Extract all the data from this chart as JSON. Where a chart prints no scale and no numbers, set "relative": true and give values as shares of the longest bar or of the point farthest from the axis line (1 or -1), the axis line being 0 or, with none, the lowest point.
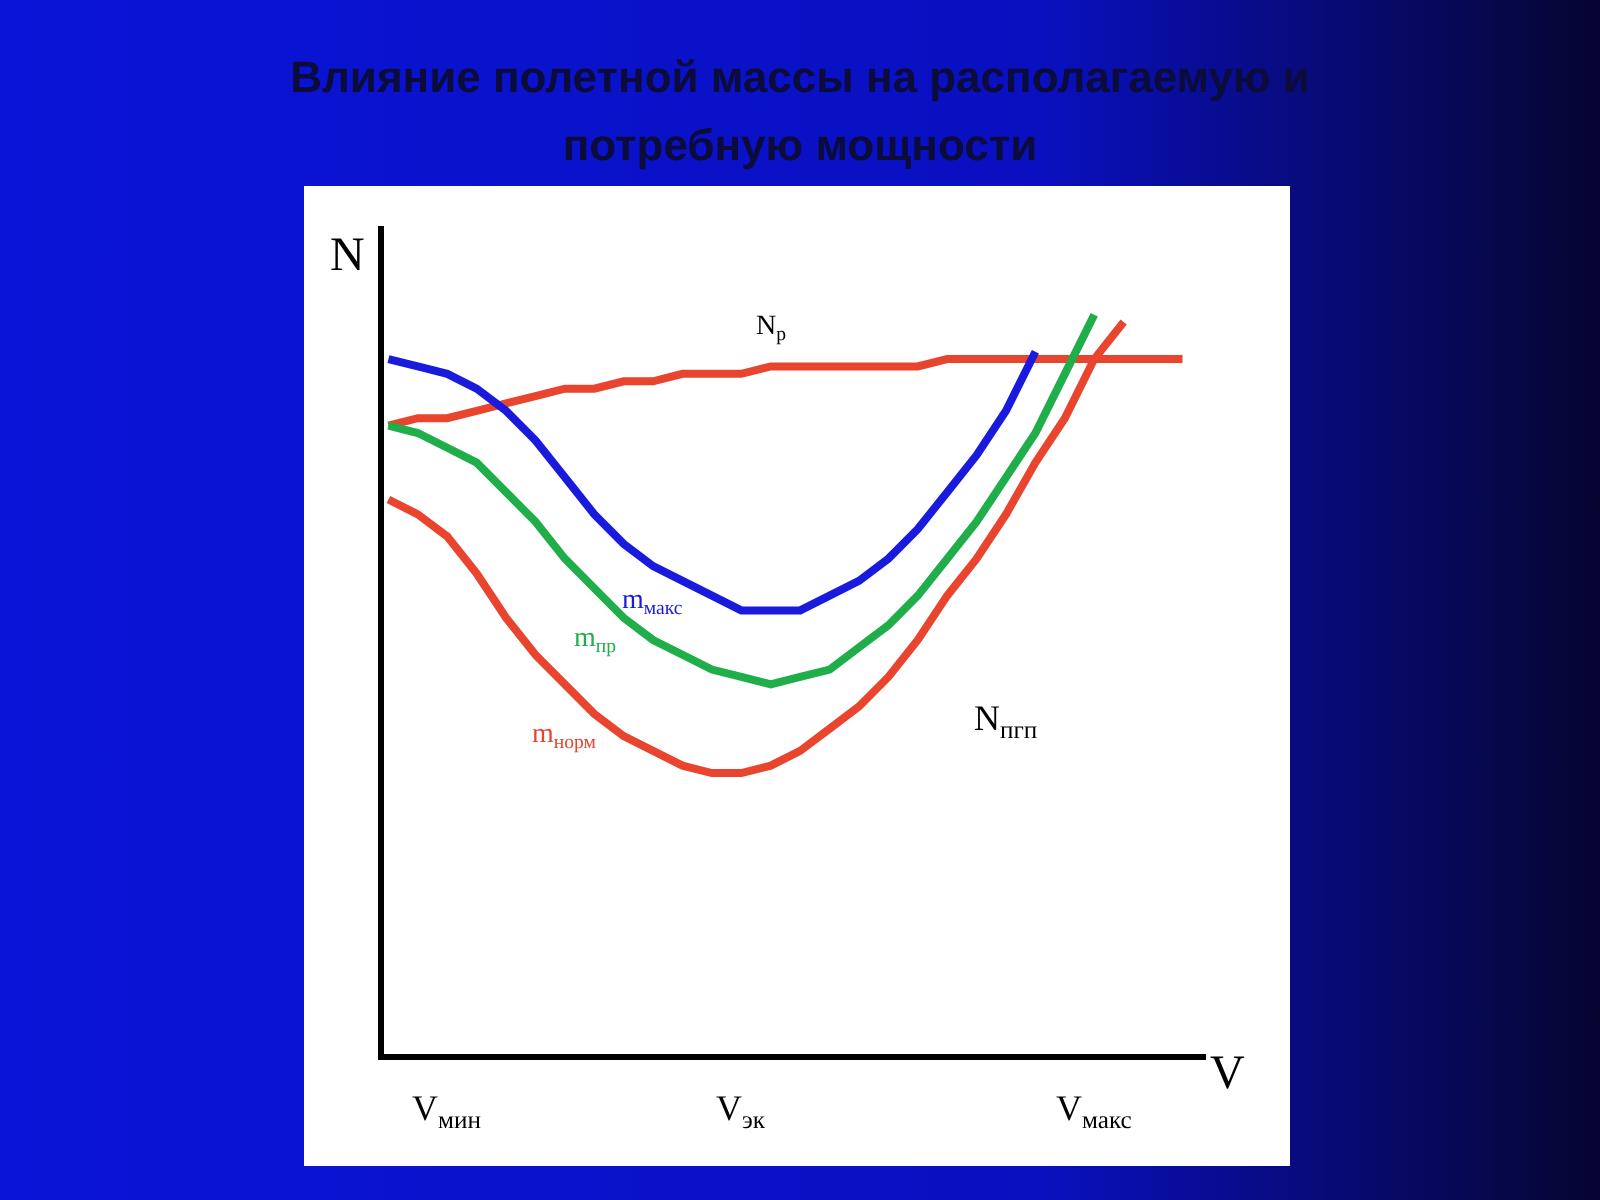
{
  "chart_data": {
    "type": "line",
    "title": "Влияние полетной массы на располагаемую и потребную мощности",
    "xlabel": "V",
    "ylabel": "N",
    "relative": true,
    "legend": false,
    "grid": false,
    "marker": "none",
    "line_style": "solid",
    "categories": [
      null,
      null,
      null,
      null,
      null,
      null,
      null,
      null,
      null,
      null,
      null,
      null,
      null,
      null,
      null,
      null,
      null,
      null,
      null,
      null,
      null,
      null,
      null,
      null,
      null,
      null,
      null,
      null
    ],
    "series": [
      {
        "name": "N$_{р}$",
        "color": "#e8442e",
        "values": [
          0.85,
          0.86,
          0.86,
          0.87,
          0.88,
          0.89,
          0.9,
          0.9,
          0.91,
          0.91,
          0.92,
          0.92,
          0.92,
          0.93,
          0.93,
          0.93,
          0.93,
          0.93,
          0.93,
          0.94,
          0.94,
          0.94,
          0.94,
          0.94,
          0.94,
          0.94,
          0.94,
          0.94
        ]
      },
      {
        "name": "m$_{макс}$",
        "color": "#1a1adc",
        "values": [
          0.94,
          0.93,
          0.92,
          0.9,
          0.87,
          0.83,
          0.78,
          0.73,
          0.69,
          0.66,
          0.64,
          0.62,
          0.6,
          0.6,
          0.6,
          0.62,
          0.64,
          0.67,
          0.71,
          0.76,
          0.81,
          0.87,
          0.95,
          null,
          null,
          null,
          null,
          null
        ]
      },
      {
        "name": "m$_{пр}$",
        "color": "#1fae4a",
        "values": [
          0.85,
          0.84,
          0.82,
          0.8,
          0.76,
          0.72,
          0.67,
          0.63,
          0.59,
          0.56,
          0.54,
          0.52,
          0.51,
          0.5,
          0.51,
          0.52,
          0.55,
          0.58,
          0.62,
          0.67,
          0.72,
          0.78,
          0.84,
          0.92,
          1.0,
          null,
          null,
          null
        ]
      },
      {
        "name": "m$_{норм}$",
        "color": "#e8442e",
        "values": [
          0.75,
          0.73,
          0.7,
          0.65,
          0.59,
          0.54,
          0.5,
          0.46,
          0.43,
          0.41,
          0.39,
          0.38,
          0.38,
          0.39,
          0.41,
          0.44,
          0.47,
          0.51,
          0.56,
          0.62,
          0.67,
          0.73,
          0.8,
          0.86,
          0.94,
          0.99,
          null,
          null
        ]
      }
    ],
    "annotations": [
      "N$_{пгп}$",
      "V$_{мин}$",
      "V$_{эк}$",
      "V$_{макс}$"
    ]
  }
}
